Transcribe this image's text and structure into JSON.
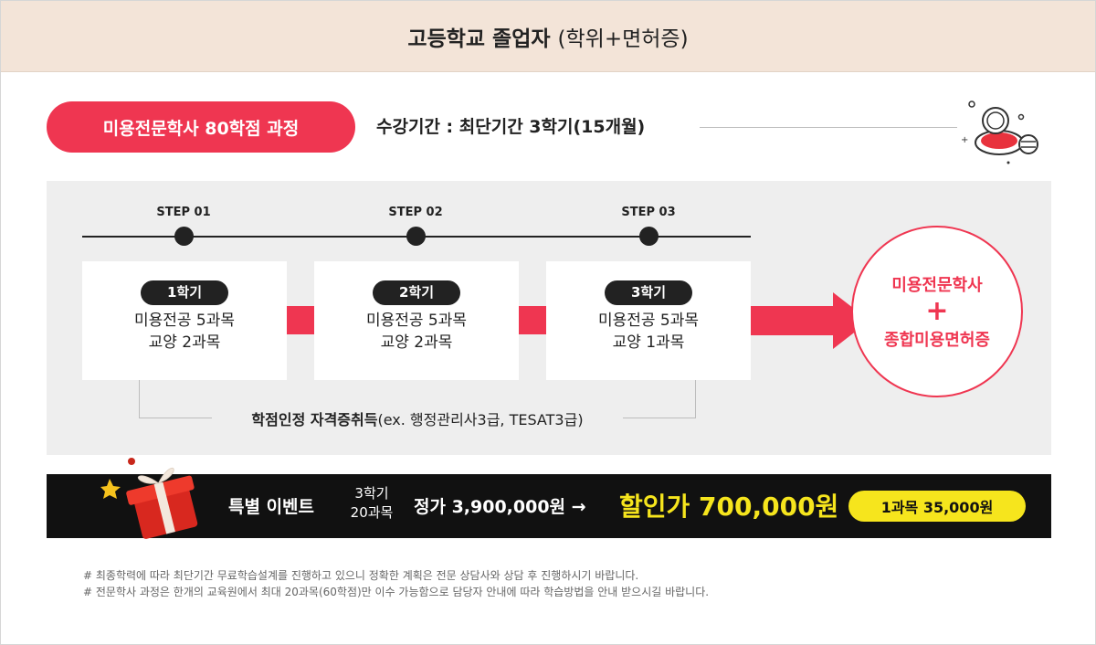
{
  "header": {
    "title_strong": "고등학교 졸업자",
    "title_light": "(학위+면허증)"
  },
  "course": {
    "pill_label": "미용전문학사 80학점 과정",
    "period": "수강기간 : 최단기간 3학기(15개월)"
  },
  "steps": [
    {
      "label": "STEP 01",
      "semester": "1학기",
      "lines": [
        "미용전공 5과목",
        "교양 2과목"
      ]
    },
    {
      "label": "STEP 02",
      "semester": "2학기",
      "lines": [
        "미용전공 5과목",
        "교양 2과목"
      ]
    },
    {
      "label": "STEP 03",
      "semester": "3학기",
      "lines": [
        "미용전공 5과목",
        "교양 1과목"
      ]
    }
  ],
  "bracket": {
    "strong": "학점인정 자격증취득",
    "rest": "(ex. 행정관리사3급, TESAT3급)"
  },
  "result": {
    "line1": "미용전문학사",
    "plus": "+",
    "line2": "종합미용면허증"
  },
  "event": {
    "title": "특별 이벤트",
    "sub_line1": "3학기",
    "sub_line2": "20과목",
    "price": "정가 3,900,000원 →",
    "discount": "할인가 700,000원",
    "per_course": "1과목 35,000원"
  },
  "notes": [
    "# 최종학력에 따라 최단기간 무료학습설계를 진행하고 있으니 정확한 계획은 전문 상담사와 상담 후 진행하시기 바랍니다.",
    "# 전문학사 과정은 한개의 교육원에서 최대 20과목(60학점)만 이수 가능함으로 담당자 안내에 따라 학습방법을 안내 받으시길 바랍니다."
  ],
  "colors": {
    "accent": "#ef3651",
    "header_bg": "#f3e4d8",
    "highlight": "#f6e51d",
    "dark": "#111111"
  },
  "icons": [
    "cosmetic-compact-icon",
    "gift-box-icon",
    "star-icon",
    "arrow-right-icon"
  ]
}
